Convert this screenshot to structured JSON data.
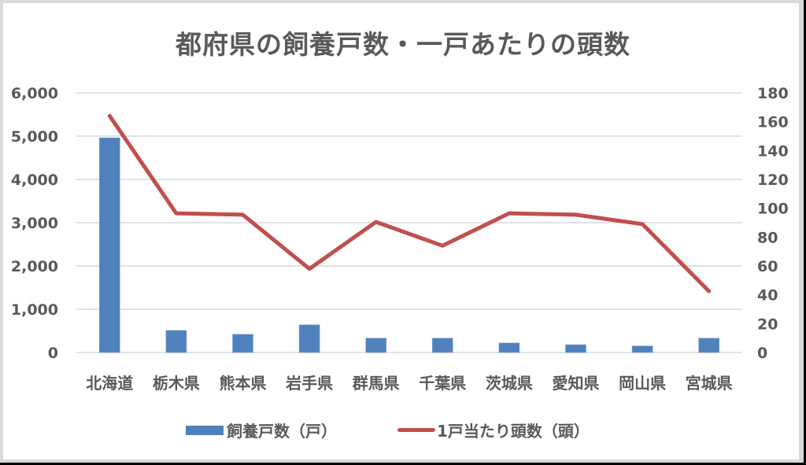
{
  "chart_data": {
    "type": "bar+line",
    "title": "都府県の飼養戸数・一戸あたりの頭数",
    "categories": [
      "北海道",
      "栃木県",
      "熊本県",
      "岩手県",
      "群馬県",
      "千葉県",
      "茨城県",
      "愛知県",
      "岡山県",
      "宮城県"
    ],
    "series": [
      {
        "name": "飼養戸数（戸）",
        "type": "bar",
        "axis": "left",
        "color": "#4F81BD",
        "values": [
          4960,
          510,
          420,
          640,
          330,
          330,
          220,
          180,
          150,
          330
        ]
      },
      {
        "name": "1戸当たり頭数（頭）",
        "type": "line",
        "axis": "right",
        "color": "#C0504D",
        "values": [
          164,
          96.5,
          95.5,
          58,
          90.5,
          74,
          96.5,
          95.5,
          89,
          42.5
        ]
      }
    ],
    "left_axis": {
      "ylim": [
        0,
        6000
      ],
      "ticks": [
        "0",
        "1,000",
        "2,000",
        "3,000",
        "4,000",
        "5,000",
        "6,000"
      ],
      "tick_values": [
        0,
        1000,
        2000,
        3000,
        4000,
        5000,
        6000
      ]
    },
    "right_axis": {
      "ylim": [
        0,
        180
      ],
      "ticks": [
        "0",
        "20",
        "40",
        "60",
        "80",
        "100",
        "120",
        "140",
        "160",
        "180"
      ],
      "tick_values": [
        0,
        20,
        40,
        60,
        80,
        100,
        120,
        140,
        160,
        180
      ]
    },
    "xlabel": "",
    "ylabel": "",
    "grid": true,
    "legend_position": "bottom"
  },
  "legend": {
    "bar_label": "飼養戸数（戸）",
    "line_label": "1戸当たり頭数（頭）"
  },
  "colors": {
    "bar": "#4F81BD",
    "line": "#C0504D",
    "text": "#595959",
    "grid": "#D9D9D9"
  }
}
